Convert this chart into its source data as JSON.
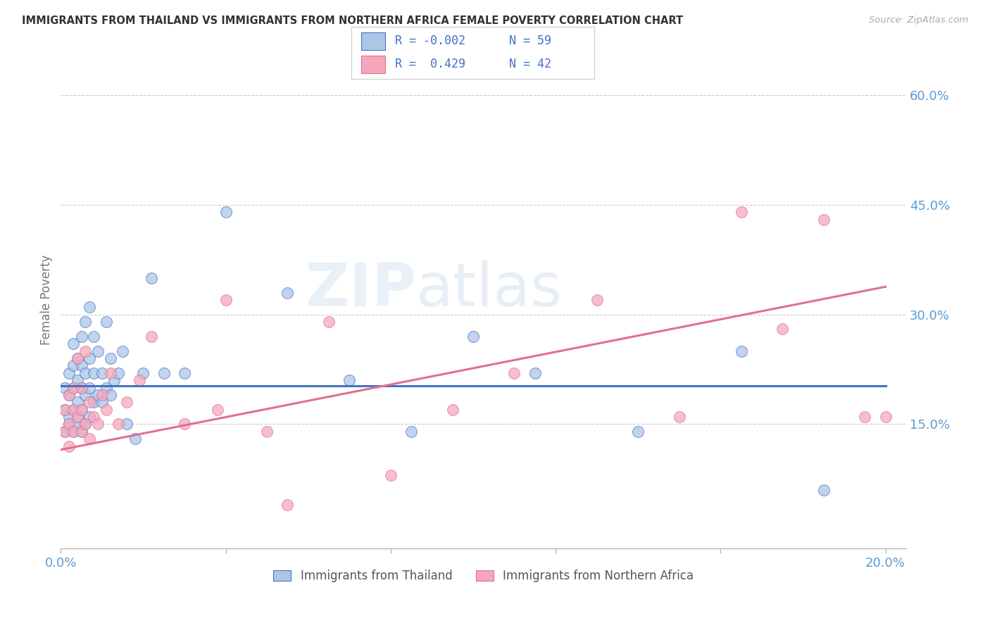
{
  "title": "IMMIGRANTS FROM THAILAND VS IMMIGRANTS FROM NORTHERN AFRICA FEMALE POVERTY CORRELATION CHART",
  "source": "Source: ZipAtlas.com",
  "ylabel": "Female Poverty",
  "xlim": [
    0.0,
    0.205
  ],
  "ylim": [
    -0.02,
    0.66
  ],
  "ytick_labels_right": [
    "15.0%",
    "30.0%",
    "45.0%",
    "60.0%"
  ],
  "ytick_vals_right": [
    0.15,
    0.3,
    0.45,
    0.6
  ],
  "grid_vals": [
    0.15,
    0.3,
    0.45,
    0.6
  ],
  "legend_r1": "-0.002",
  "legend_n1": "59",
  "legend_r2": "0.429",
  "legend_n2": "42",
  "color_thailand": "#adc6e8",
  "color_n_africa": "#f5a8bc",
  "color_trend_thailand": "#4472c4",
  "color_trend_n_africa": "#e07090",
  "color_axis_labels": "#5b9bd5",
  "watermark_zip": "ZIP",
  "watermark_atlas": "atlas",
  "thailand_x": [
    0.001,
    0.001,
    0.001,
    0.002,
    0.002,
    0.002,
    0.002,
    0.003,
    0.003,
    0.003,
    0.003,
    0.003,
    0.004,
    0.004,
    0.004,
    0.004,
    0.004,
    0.005,
    0.005,
    0.005,
    0.005,
    0.005,
    0.006,
    0.006,
    0.006,
    0.006,
    0.007,
    0.007,
    0.007,
    0.007,
    0.008,
    0.008,
    0.008,
    0.009,
    0.009,
    0.01,
    0.01,
    0.011,
    0.011,
    0.012,
    0.012,
    0.013,
    0.014,
    0.015,
    0.016,
    0.018,
    0.02,
    0.022,
    0.025,
    0.03,
    0.04,
    0.055,
    0.07,
    0.085,
    0.1,
    0.115,
    0.14,
    0.165,
    0.185
  ],
  "thailand_y": [
    0.17,
    0.14,
    0.2,
    0.16,
    0.19,
    0.22,
    0.15,
    0.14,
    0.17,
    0.2,
    0.23,
    0.26,
    0.15,
    0.18,
    0.21,
    0.24,
    0.16,
    0.14,
    0.17,
    0.2,
    0.23,
    0.27,
    0.15,
    0.19,
    0.22,
    0.29,
    0.16,
    0.2,
    0.24,
    0.31,
    0.18,
    0.22,
    0.27,
    0.19,
    0.25,
    0.18,
    0.22,
    0.2,
    0.29,
    0.19,
    0.24,
    0.21,
    0.22,
    0.25,
    0.15,
    0.13,
    0.22,
    0.35,
    0.22,
    0.22,
    0.44,
    0.33,
    0.21,
    0.14,
    0.27,
    0.22,
    0.14,
    0.25,
    0.06
  ],
  "n_africa_x": [
    0.001,
    0.001,
    0.002,
    0.002,
    0.002,
    0.003,
    0.003,
    0.003,
    0.004,
    0.004,
    0.005,
    0.005,
    0.005,
    0.006,
    0.006,
    0.007,
    0.007,
    0.008,
    0.009,
    0.01,
    0.011,
    0.012,
    0.014,
    0.016,
    0.019,
    0.022,
    0.03,
    0.038,
    0.05,
    0.065,
    0.08,
    0.095,
    0.11,
    0.13,
    0.15,
    0.165,
    0.175,
    0.185,
    0.195,
    0.2,
    0.055,
    0.04
  ],
  "n_africa_y": [
    0.14,
    0.17,
    0.15,
    0.12,
    0.19,
    0.14,
    0.17,
    0.2,
    0.16,
    0.24,
    0.14,
    0.17,
    0.2,
    0.15,
    0.25,
    0.13,
    0.18,
    0.16,
    0.15,
    0.19,
    0.17,
    0.22,
    0.15,
    0.18,
    0.21,
    0.27,
    0.15,
    0.17,
    0.14,
    0.29,
    0.08,
    0.17,
    0.22,
    0.32,
    0.16,
    0.44,
    0.28,
    0.43,
    0.16,
    0.16,
    0.04,
    0.32
  ],
  "trend_th_y0": 0.202,
  "trend_th_y1": 0.202,
  "trend_na_y0": 0.115,
  "trend_na_y1": 0.338
}
